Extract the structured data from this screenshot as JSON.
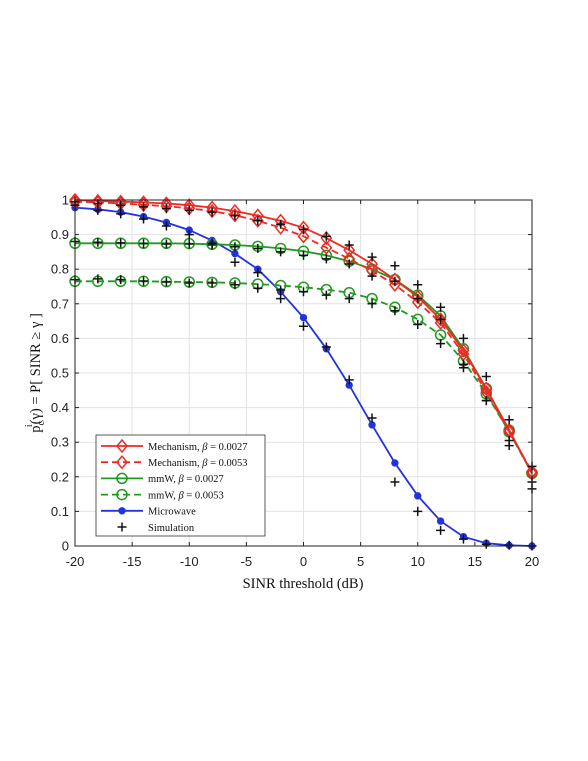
{
  "chart_data": {
    "type": "line",
    "xlabel": "SINR threshold (dB)",
    "ylabel": "p_c^i(γ) = P[ SINR ≥ γ ]",
    "ylabel_parts": {
      "p": "p",
      "sup": "i",
      "sub": "c",
      "rest": "(γ) = P[ SINR ≥ γ ]"
    },
    "xlim": [
      -20,
      20
    ],
    "ylim": [
      0,
      1
    ],
    "xticks": [
      -20,
      -15,
      -10,
      -5,
      0,
      5,
      10,
      15,
      20
    ],
    "xtick_labels": [
      "-20",
      "-15",
      "-10",
      "-5",
      "0",
      "5",
      "10",
      "15",
      "20"
    ],
    "yticks": [
      0,
      0.1,
      0.2,
      0.3,
      0.4,
      0.5,
      0.6,
      0.7,
      0.8,
      0.9,
      1
    ],
    "ytick_labels": [
      "0",
      "0.1",
      "0.2",
      "0.3",
      "0.4",
      "0.5",
      "0.6",
      "0.7",
      "0.8",
      "0.9",
      "1"
    ],
    "grid": true,
    "legend_position": "bottom-left",
    "series": [
      {
        "name": "Mechanism, β = 0.0027",
        "legend_prefix": "Mechanism, ",
        "legend_beta": "β",
        "legend_suffix": " = 0.0027",
        "color": "#ee2a24",
        "line": "solid",
        "marker": "diamond",
        "x": [
          -20,
          -18,
          -16,
          -14,
          -12,
          -10,
          -8,
          -6,
          -4,
          -2,
          0,
          2,
          4,
          6,
          8,
          10,
          12,
          14,
          16,
          18,
          20
        ],
        "y": [
          1.0,
          0.997,
          0.995,
          0.993,
          0.99,
          0.985,
          0.978,
          0.968,
          0.955,
          0.94,
          0.92,
          0.89,
          0.855,
          0.815,
          0.77,
          0.72,
          0.655,
          0.565,
          0.455,
          0.335,
          0.21
        ]
      },
      {
        "name": "Mechanism, β = 0.0053",
        "legend_prefix": "Mechanism, ",
        "legend_beta": "β",
        "legend_suffix": " = 0.0053",
        "color": "#ee2a24",
        "line": "dashed",
        "marker": "diamond",
        "x": [
          -20,
          -18,
          -16,
          -14,
          -12,
          -10,
          -8,
          -6,
          -4,
          -2,
          0,
          2,
          4,
          6,
          8,
          10,
          12,
          14,
          16,
          18,
          20
        ],
        "y": [
          0.995,
          0.993,
          0.99,
          0.986,
          0.982,
          0.976,
          0.968,
          0.956,
          0.94,
          0.92,
          0.895,
          0.862,
          0.83,
          0.795,
          0.755,
          0.705,
          0.645,
          0.555,
          0.445,
          0.33,
          0.215
        ]
      },
      {
        "name": "mmW, β = 0.0027",
        "legend_prefix": "mmW, ",
        "legend_beta": "β",
        "legend_suffix": " = 0.0027",
        "color": "#229922",
        "line": "solid",
        "marker": "circle",
        "x": [
          -20,
          -18,
          -16,
          -14,
          -12,
          -10,
          -8,
          -6,
          -4,
          -2,
          0,
          2,
          4,
          6,
          8,
          10,
          12,
          14,
          16,
          18,
          20
        ],
        "y": [
          0.875,
          0.875,
          0.875,
          0.875,
          0.875,
          0.874,
          0.872,
          0.87,
          0.866,
          0.86,
          0.852,
          0.84,
          0.823,
          0.8,
          0.77,
          0.725,
          0.665,
          0.57,
          0.455,
          0.335,
          0.21
        ]
      },
      {
        "name": "mmW, β = 0.0053",
        "legend_prefix": "mmW, ",
        "legend_beta": "β",
        "legend_suffix": " = 0.0053",
        "color": "#229922",
        "line": "dashed",
        "marker": "circle",
        "x": [
          -20,
          -18,
          -16,
          -14,
          -12,
          -10,
          -8,
          -6,
          -4,
          -2,
          0,
          2,
          4,
          6,
          8,
          10,
          12,
          14,
          16,
          18,
          20
        ],
        "y": [
          0.765,
          0.765,
          0.765,
          0.765,
          0.764,
          0.763,
          0.762,
          0.76,
          0.757,
          0.753,
          0.748,
          0.741,
          0.732,
          0.715,
          0.69,
          0.655,
          0.61,
          0.535,
          0.44,
          0.33,
          0.21
        ]
      },
      {
        "name": "Microwave",
        "legend_prefix": "Microwave",
        "legend_beta": "",
        "legend_suffix": "",
        "color": "#2233dd",
        "line": "solid",
        "marker": "dot",
        "x": [
          -20,
          -18,
          -16,
          -14,
          -12,
          -10,
          -8,
          -6,
          -4,
          -2,
          0,
          2,
          4,
          6,
          8,
          10,
          12,
          14,
          16,
          18,
          20
        ],
        "y": [
          0.978,
          0.973,
          0.965,
          0.952,
          0.935,
          0.913,
          0.883,
          0.845,
          0.8,
          0.735,
          0.66,
          0.57,
          0.465,
          0.35,
          0.24,
          0.145,
          0.072,
          0.027,
          0.008,
          0.002,
          0.0
        ]
      },
      {
        "name": "Simulation",
        "legend_prefix": "Simulation",
        "legend_beta": "",
        "legend_suffix": "",
        "color": "#111111",
        "line": "none",
        "marker": "plus",
        "groups": [
          {
            "x": [
              -20,
              -18,
              -16,
              -14,
              -12,
              -10,
              -8,
              -6,
              -4,
              -2,
              0,
              2,
              4,
              6,
              8,
              10,
              12,
              14,
              16,
              18,
              20
            ],
            "y": [
              0.995,
              0.99,
              0.985,
              0.98,
              0.975,
              0.97,
              0.965,
              0.955,
              0.94,
              0.93,
              0.915,
              0.895,
              0.87,
              0.835,
              0.81,
              0.755,
              0.69,
              0.6,
              0.49,
              0.365,
              0.23
            ]
          },
          {
            "x": [
              -20,
              -18,
              -16,
              -14,
              -12,
              -10,
              -8,
              -6,
              -4,
              -2,
              0,
              2,
              4,
              6,
              8,
              10,
              12,
              14,
              16,
              18,
              20
            ],
            "y": [
              0.88,
              0.878,
              0.876,
              0.874,
              0.873,
              0.873,
              0.87,
              0.865,
              0.86,
              0.85,
              0.84,
              0.83,
              0.815,
              0.78,
              0.765,
              0.715,
              0.655,
              0.525,
              0.42,
              0.29,
              0.185
            ]
          },
          {
            "x": [
              -20,
              -18,
              -16,
              -14,
              -12,
              -10,
              -8,
              -6,
              -4,
              -2,
              0,
              2,
              4,
              6,
              8,
              10,
              12,
              14,
              16,
              18,
              20
            ],
            "y": [
              0.77,
              0.772,
              0.77,
              0.766,
              0.763,
              0.76,
              0.76,
              0.755,
              0.745,
              0.74,
              0.735,
              0.725,
              0.715,
              0.7,
              0.68,
              0.64,
              0.585,
              0.515,
              0.42,
              0.305,
              0.165
            ]
          },
          {
            "x": [
              -20,
              -18,
              -16,
              -14,
              -12,
              -10,
              -8,
              -6,
              -4,
              -2,
              0,
              2,
              4,
              6,
              8,
              10,
              12,
              14,
              16,
              18,
              20
            ],
            "y": [
              0.985,
              0.97,
              0.96,
              0.945,
              0.925,
              0.9,
              0.875,
              0.82,
              0.79,
              0.715,
              0.635,
              0.575,
              0.48,
              0.37,
              0.185,
              0.1,
              0.045,
              0.02,
              0.005,
              0.002,
              0.0
            ]
          }
        ]
      }
    ]
  }
}
